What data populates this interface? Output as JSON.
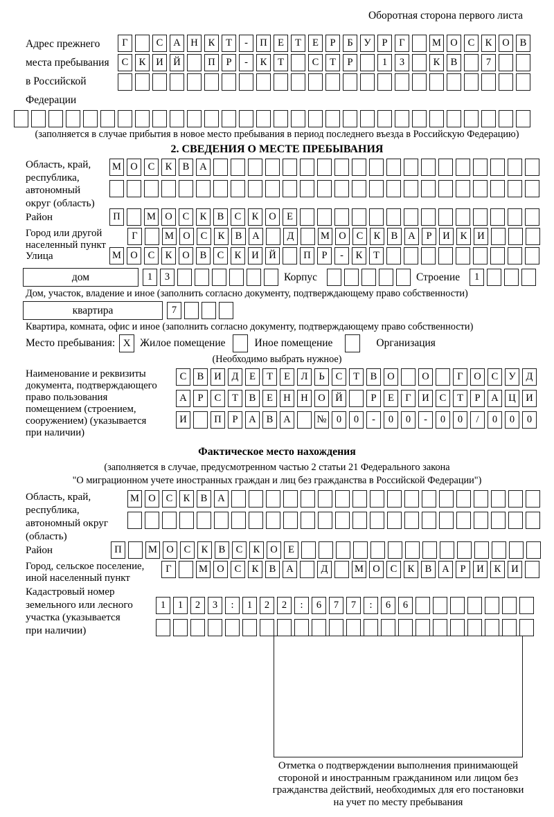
{
  "corner_note": "Оборотная сторона первого листа",
  "prev_address": {
    "label_lines": [
      "Адрес прежнего",
      "места пребывания",
      "в Российской",
      "Федерации"
    ],
    "row1": "Г_САНКТ-ПЕТЕРБУРГ_МОСКОВ",
    "row2": "СКИЙ_ПР-КТ_СТР_13_КВ_7__",
    "row3": "________________________",
    "row4": "______________________________",
    "note": "(заполняется в случае прибытия в новое место пребывания в период последнего въезда в Российскую Федерацию)"
  },
  "section2": {
    "title": "2. СВЕДЕНИЯ О МЕСТЕ ПРЕБЫВАНИЯ",
    "region": {
      "label_lines": [
        "Область, край,",
        "республика,",
        "автономный",
        "округ (область)"
      ],
      "row1": "МОСКВА___________________",
      "row2": "_________________________"
    },
    "district": {
      "label": "Район",
      "row": "П_МОСКВСКОЕ______________"
    },
    "city": {
      "label_lines": [
        "Город или другой",
        "населенный пункт"
      ],
      "row": "Г_МОСКВА_Д_МОСКВАРИКИ___"
    },
    "street": {
      "label": "Улица",
      "row": "МОСКОВСКИЙ_ПР-КТ_________"
    },
    "house": {
      "box_label": "дом",
      "cells": "13______",
      "korpus_label": "Корпус",
      "korpus_cells": "_____",
      "stroenie_label": "Строение",
      "stroenie_cells": "1___",
      "note": "Дом, участок, владение и иное (заполнить согласно документу, подтверждающему право собственности)"
    },
    "apartment": {
      "box_label": "квартира",
      "cells": "7___",
      "note": "Квартира, комната, офис и иное (заполнить согласно документу, подтверждающему право собственности)"
    },
    "stay_type": {
      "label": "Место пребывания:",
      "checkbox_residential": "X",
      "option_residential": "Жилое помещение",
      "checkbox_other": "",
      "option_other": "Иное помещение",
      "checkbox_organization": "",
      "option_organization": "Организация",
      "note": "(Необходимо выбрать нужное)"
    },
    "document": {
      "label_lines": [
        "Наименование и реквизиты",
        "документа, подтверждающего",
        "право пользования",
        "помещением (строением,",
        "сооружением) (указывается",
        "при наличии)"
      ],
      "row1": "СВИДЕТЕЛЬСТВО_О_ГОСУД",
      "row2": "АРСТВЕННОЙ_РЕГИСТРАЦИ",
      "row3": "И_ПРАВА_№00-00-00/000"
    }
  },
  "actual_location": {
    "title": "Фактическое место нахождения",
    "note_lines": [
      "(заполняется в случае, предусмотренном частью 2 статьи 21 Федерального закона",
      "\"О миграционном учете иностранных граждан и лиц без гражданства в Российской Федерации\")"
    ],
    "region": {
      "label_lines": [
        "Область, край,",
        "республика,",
        "автономный округ",
        "(область)"
      ],
      "row1": "МОСКВА__________________",
      "row2": "________________________"
    },
    "district": {
      "label": "Район",
      "row": "П_МОСКВСКОЕ______________"
    },
    "city": {
      "label_lines": [
        "Город, сельское поселение,",
        "иной населенный пункт"
      ],
      "row": "Г_МОСКВА_Д_МОСКВАРИКИ_"
    },
    "cadastre": {
      "label_lines": [
        "Кадастровый номер",
        "земельного или лесного",
        "участка (указывается",
        "при наличии)"
      ],
      "row1": "1123:122:677:66_______",
      "row2": "______________________"
    }
  },
  "confirmation": {
    "caption_lines": [
      "Отметка о подтверждении выполнения принимающей",
      "стороной и иностранным гражданином или лицом без",
      "гражданства действий, необходимых для его постановки",
      "на учет по месту пребывания"
    ]
  }
}
